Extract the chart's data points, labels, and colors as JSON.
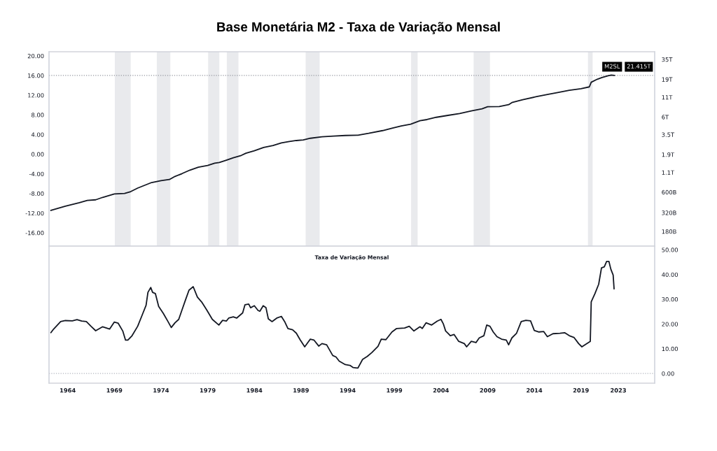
{
  "chart_data": [
    {
      "type": "line",
      "title": "Base Monetária M2 - Taxa de Variação Mensal",
      "xlim": [
        1962.0,
        2026.9
      ],
      "ylim": [
        -18.7,
        20.85
      ],
      "yticks": [
        {
          "value": -16,
          "label": "-16.00"
        },
        {
          "value": -12,
          "label": "-12.00"
        },
        {
          "value": -8,
          "label": "-8.00"
        },
        {
          "value": -4,
          "label": "-4.00"
        },
        {
          "value": 0,
          "label": "0.00"
        },
        {
          "value": 4,
          "label": "4.00"
        },
        {
          "value": 8,
          "label": "8.00"
        },
        {
          "value": 12,
          "label": "12.00"
        },
        {
          "value": 16,
          "label": "16.00"
        },
        {
          "value": 20,
          "label": "20.00"
        }
      ],
      "y2lim": [
        115000000000.0,
        44300000000000.0
      ],
      "y2ticks": [
        {
          "value": 35000000000000.0,
          "label": "35T"
        },
        {
          "value": 19000000000000.0,
          "label": "19T"
        },
        {
          "value": 11000000000000.0,
          "label": "11T"
        },
        {
          "value": 6000000000000.0,
          "label": "6T"
        },
        {
          "value": 3500000000000.0,
          "label": "3.5T"
        },
        {
          "value": 1900000000000.0,
          "label": "1.9T"
        },
        {
          "value": 1100000000000.0,
          "label": "1.1T"
        },
        {
          "value": 600000000000.0,
          "label": "600B"
        },
        {
          "value": 320000000000.0,
          "label": "320B"
        },
        {
          "value": 180000000000.0,
          "label": "180B"
        }
      ],
      "log": "y2",
      "tick_labels": "y",
      "series": [
        {
          "name": "M2SL",
          "color": "#131722",
          "axis": "y2",
          "x": [
            1962.2,
            1963.75,
            1965.25,
            1966.1,
            1967.0,
            1967.75,
            1969.0,
            1970.1,
            1970.75,
            1971.5,
            1972.25,
            1973.0,
            1974.0,
            1974.9,
            1975.5,
            1976.25,
            1977.1,
            1978.0,
            1979.0,
            1979.75,
            1980.25,
            1981.0,
            1981.75,
            1982.6,
            1983.1,
            1984.0,
            1985.0,
            1986.0,
            1986.9,
            1987.75,
            1988.5,
            1989.25,
            1990.0,
            1991.25,
            1992.5,
            1993.75,
            1995.1,
            1996.25,
            1997.75,
            1998.75,
            1999.75,
            2000.75,
            2001.75,
            2002.5,
            2003.5,
            2004.75,
            2006.0,
            2007.25,
            2008.4,
            2009.0,
            2010.25,
            2011.25,
            2011.6,
            2012.75,
            2014.25,
            2015.5,
            2016.5,
            2017.75,
            2019.0,
            2019.9,
            2020.1,
            2020.75,
            2021.25,
            2021.9,
            2022.25,
            2022.6
          ],
          "values": [
            343000000000.0,
            390000000000.0,
            434000000000.0,
            466000000000.0,
            475000000000.0,
            512000000000.0,
            569000000000.0,
            577000000000.0,
            611000000000.0,
            680000000000.0,
            741000000000.0,
            807000000000.0,
            855000000000.0,
            885000000000.0,
            973000000000.0,
            1060000000000.0,
            1180000000000.0,
            1290000000000.0,
            1360000000000.0,
            1460000000000.0,
            1490000000000.0,
            1600000000000.0,
            1720000000000.0,
            1850000000000.0,
            1980000000000.0,
            2130000000000.0,
            2360000000000.0,
            2500000000000.0,
            2720000000000.0,
            2840000000000.0,
            2920000000000.0,
            2980000000000.0,
            3130000000000.0,
            3270000000000.0,
            3340000000000.0,
            3410000000000.0,
            3440000000000.0,
            3640000000000.0,
            3960000000000.0,
            4260000000000.0,
            4570000000000.0,
            4810000000000.0,
            5350000000000.0,
            5550000000000.0,
            5950000000000.0,
            6310000000000.0,
            6680000000000.0,
            7220000000000.0,
            7700000000000.0,
            8210000000000.0,
            8280000000000.0,
            8750000000000.0,
            9330000000000.0,
            10200000000000.0,
            11200000000000.0,
            12000000000000.0,
            12700000000000.0,
            13600000000000.0,
            14300000000000.0,
            15100000000000.0,
            17400000000000.0,
            19100000000000.0,
            20100000000000.0,
            21200000000000.0,
            21700000000000.0,
            21415000000000.0
          ]
        }
      ],
      "ref_lines": [
        {
          "axis": "y2",
          "value": 21415000000000.0,
          "label": "21.415T",
          "color": "#9598a1",
          "line_style": "dotted"
        }
      ],
      "bands": [
        {
          "axis": "x",
          "from": 1969.05,
          "to": 1970.75,
          "color": "#e9eaed"
        },
        {
          "axis": "x",
          "from": 1973.55,
          "to": 1975.0,
          "color": "#e9eaed"
        },
        {
          "axis": "x",
          "from": 1979.05,
          "to": 1980.25,
          "color": "#e9eaed"
        },
        {
          "axis": "x",
          "from": 1981.05,
          "to": 1982.3,
          "color": "#e9eaed"
        },
        {
          "axis": "x",
          "from": 1989.5,
          "to": 1991.0,
          "color": "#e9eaed"
        },
        {
          "axis": "x",
          "from": 2000.8,
          "to": 2001.5,
          "color": "#e9eaed"
        },
        {
          "axis": "x",
          "from": 2007.5,
          "to": 2009.25,
          "color": "#e9eaed"
        },
        {
          "axis": "x",
          "from": 2019.75,
          "to": 2020.25,
          "color": "#e9eaed"
        }
      ]
    },
    {
      "type": "line",
      "title": "Taxa de Variação Mensal",
      "xlim": [
        1962.0,
        2026.9
      ],
      "xticks": [
        1964,
        1969,
        1974,
        1979,
        1984,
        1989,
        1994,
        1999,
        2004,
        2009,
        2014,
        2019,
        2023
      ],
      "y2lim": [
        -3.9,
        51.5
      ],
      "y2ticks": [
        {
          "value": 0,
          "label": "0.00"
        },
        {
          "value": 10,
          "label": "10.00"
        },
        {
          "value": 20,
          "label": "20.00"
        },
        {
          "value": 30,
          "label": "30.00"
        },
        {
          "value": 40,
          "label": "40.00"
        },
        {
          "value": 50,
          "label": "50.00"
        }
      ],
      "series": [
        {
          "color": "#131722",
          "axis": "y2",
          "x": [
            1962.2,
            1962.5,
            1962.9,
            1963.25,
            1963.75,
            1964.5,
            1965.0,
            1965.5,
            1966.0,
            1966.5,
            1967.0,
            1967.75,
            1968.5,
            1969.0,
            1969.4,
            1969.9,
            1970.2,
            1970.45,
            1970.9,
            1971.5,
            1972.0,
            1972.4,
            1972.6,
            1972.9,
            1973.1,
            1973.4,
            1973.75,
            1974.25,
            1974.75,
            1975.1,
            1975.5,
            1975.9,
            1976.25,
            1976.6,
            1977.0,
            1977.45,
            1977.9,
            1978.4,
            1978.9,
            1979.5,
            1980.2,
            1980.6,
            1981.0,
            1981.25,
            1981.75,
            1982.1,
            1982.75,
            1983.0,
            1983.4,
            1983.6,
            1984.0,
            1984.4,
            1984.6,
            1984.95,
            1985.25,
            1985.5,
            1985.9,
            1986.4,
            1986.9,
            1987.25,
            1987.6,
            1988.1,
            1988.5,
            1988.9,
            1989.4,
            1990.0,
            1990.4,
            1990.9,
            1991.25,
            1991.75,
            1992.4,
            1992.75,
            1993.1,
            1993.75,
            1994.25,
            1994.6,
            1995.1,
            1995.6,
            1996.1,
            1996.6,
            1997.25,
            1997.6,
            1998.1,
            1998.75,
            1999.25,
            2000.1,
            2000.6,
            2001.1,
            2001.75,
            2002.0,
            2002.4,
            2003.0,
            2003.6,
            2004.0,
            2004.25,
            2004.5,
            2004.75,
            2005.0,
            2005.4,
            2005.9,
            2006.5,
            2006.75,
            2007.25,
            2007.75,
            2008.1,
            2008.6,
            2008.9,
            2009.25,
            2009.6,
            2010.0,
            2010.5,
            2011.0,
            2011.25,
            2011.6,
            2012.1,
            2012.6,
            2013.1,
            2013.6,
            2014.0,
            2014.5,
            2015.0,
            2015.4,
            2016.0,
            2016.75,
            2017.25,
            2017.75,
            2018.25,
            2018.75,
            2019.1,
            2019.5,
            2020.0,
            2020.1,
            2020.5,
            2020.9,
            2021.2,
            2021.5,
            2021.75,
            2022.0,
            2022.2,
            2022.45,
            2022.55
          ],
          "values": [
            16.5,
            18.0,
            19.6,
            21.0,
            21.4,
            21.3,
            21.8,
            21.2,
            21.0,
            19.1,
            17.3,
            18.9,
            18.0,
            20.8,
            20.4,
            17.2,
            13.5,
            13.5,
            15.3,
            19.1,
            23.8,
            27.6,
            32.8,
            34.8,
            32.8,
            32.3,
            27.1,
            24.3,
            21.0,
            18.6,
            20.5,
            21.9,
            25.7,
            29.5,
            33.7,
            35.1,
            30.9,
            28.7,
            25.7,
            21.9,
            19.6,
            21.5,
            21.2,
            22.4,
            22.9,
            22.4,
            24.5,
            27.8,
            28.1,
            26.6,
            27.4,
            25.5,
            25.2,
            27.4,
            26.6,
            22.1,
            21.0,
            22.4,
            23.1,
            21.0,
            18.2,
            17.7,
            16.3,
            13.7,
            10.8,
            13.9,
            13.5,
            11.1,
            12.1,
            11.6,
            7.3,
            6.7,
            5.0,
            3.6,
            3.3,
            2.4,
            2.2,
            5.7,
            6.9,
            8.5,
            11.0,
            13.9,
            13.7,
            16.8,
            18.2,
            18.4,
            19.1,
            17.2,
            18.9,
            18.2,
            20.5,
            19.6,
            21.2,
            21.9,
            20.1,
            17.2,
            16.3,
            15.3,
            15.8,
            13.0,
            12.1,
            10.8,
            13.0,
            12.5,
            14.4,
            15.3,
            19.6,
            19.1,
            16.8,
            14.9,
            13.9,
            13.5,
            11.6,
            14.4,
            16.3,
            21.0,
            21.5,
            21.3,
            17.4,
            16.8,
            17.0,
            14.9,
            16.1,
            16.3,
            16.5,
            15.3,
            14.6,
            12.1,
            10.8,
            11.8,
            13.0,
            29.0,
            32.3,
            36.1,
            42.7,
            43.1,
            45.3,
            45.3,
            42.2,
            39.8,
            34.2
          ]
        }
      ],
      "ref_lines": [
        {
          "axis": "y2",
          "value": 0,
          "color": "#b2b5be",
          "line_style": "dotted"
        }
      ]
    }
  ]
}
